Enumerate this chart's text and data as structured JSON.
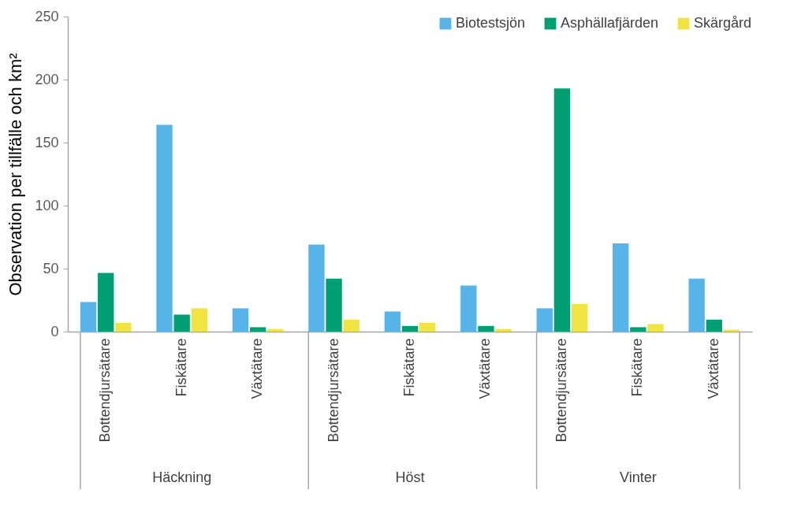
{
  "chart_data": {
    "type": "bar",
    "ylabel": "Observation per tillfälle och km²",
    "categories": [
      "Bottendjursätare",
      "Fiskätare",
      "Växtätare",
      "Bottendjursätare",
      "Fiskätare",
      "Växtätare",
      "Bottendjursätare",
      "Fiskätare",
      "Växtätare"
    ],
    "series": [
      {
        "name": "Biotestsjön",
        "color": "#56b4e9",
        "values": [
          23.5,
          164,
          18.5,
          69,
          16,
          36.5,
          18.5,
          70,
          42
        ]
      },
      {
        "name": "Asphällafjärden",
        "color": "#009e73",
        "values": [
          46.5,
          13.5,
          3.5,
          42,
          4.5,
          4.5,
          193,
          3.5,
          9.5
        ]
      },
      {
        "name": "Skärgård",
        "color": "#f0e442",
        "values": [
          7,
          18.5,
          2,
          9.5,
          7,
          2,
          22,
          6,
          1.5
        ]
      }
    ],
    "annotations": [
      "Häckning",
      "Höst",
      "Vinter"
    ],
    "ylim": [
      0,
      250
    ],
    "yticks": [
      0,
      50,
      100,
      150,
      200,
      250
    ],
    "legend": "top right",
    "grid": false
  }
}
